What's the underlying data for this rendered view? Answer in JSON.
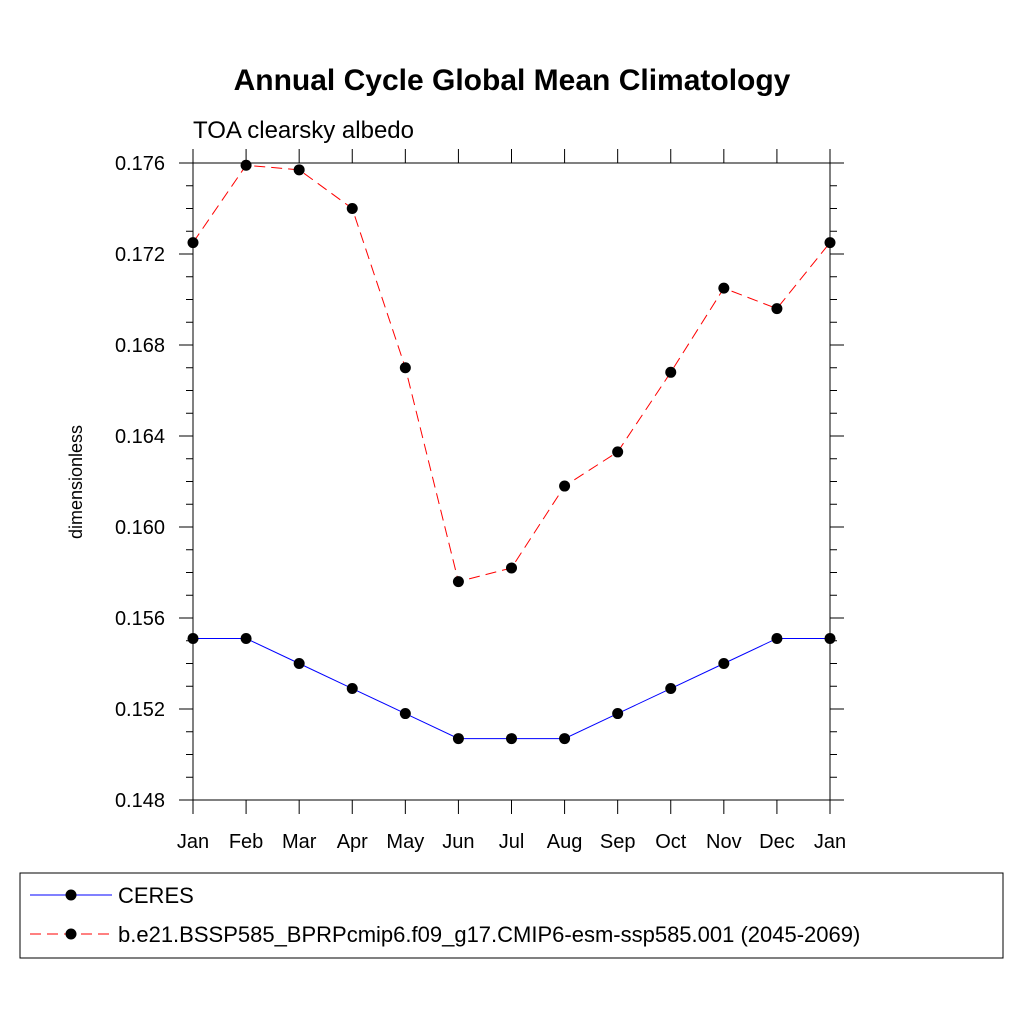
{
  "chart_data": {
    "type": "line",
    "title": "Annual Cycle Global Mean Climatology",
    "subtitle": "TOA clearsky albedo",
    "xlabel": "",
    "ylabel": "dimensionless",
    "categories": [
      "Jan",
      "Feb",
      "Mar",
      "Apr",
      "May",
      "Jun",
      "Jul",
      "Aug",
      "Sep",
      "Oct",
      "Nov",
      "Dec",
      "Jan"
    ],
    "ylim": [
      0.148,
      0.176
    ],
    "yticks": [
      "0.148",
      "0.152",
      "0.156",
      "0.160",
      "0.164",
      "0.168",
      "0.172",
      "0.176"
    ],
    "ytick_values": [
      0.148,
      0.152,
      0.156,
      0.16,
      0.164,
      0.168,
      0.172,
      0.176
    ],
    "grid": false,
    "legend_position": "bottom",
    "series": [
      {
        "name": "CERES",
        "color": "#0000ff",
        "dash": "solid",
        "values": [
          0.1551,
          0.1551,
          0.154,
          0.1529,
          0.1518,
          0.1507,
          0.1507,
          0.1507,
          0.1518,
          0.1529,
          0.154,
          0.1551,
          0.1551
        ]
      },
      {
        "name": "b.e21.BSSP585_BPRPcmip6.f09_g17.CMIP6-esm-ssp585.001 (2045-2069)",
        "color": "#ff0000",
        "dash": "dashed",
        "values": [
          0.1725,
          0.1759,
          0.1757,
          0.174,
          0.167,
          0.1576,
          0.1582,
          0.1618,
          0.1633,
          0.1668,
          0.1705,
          0.1696,
          0.1725
        ]
      }
    ]
  }
}
